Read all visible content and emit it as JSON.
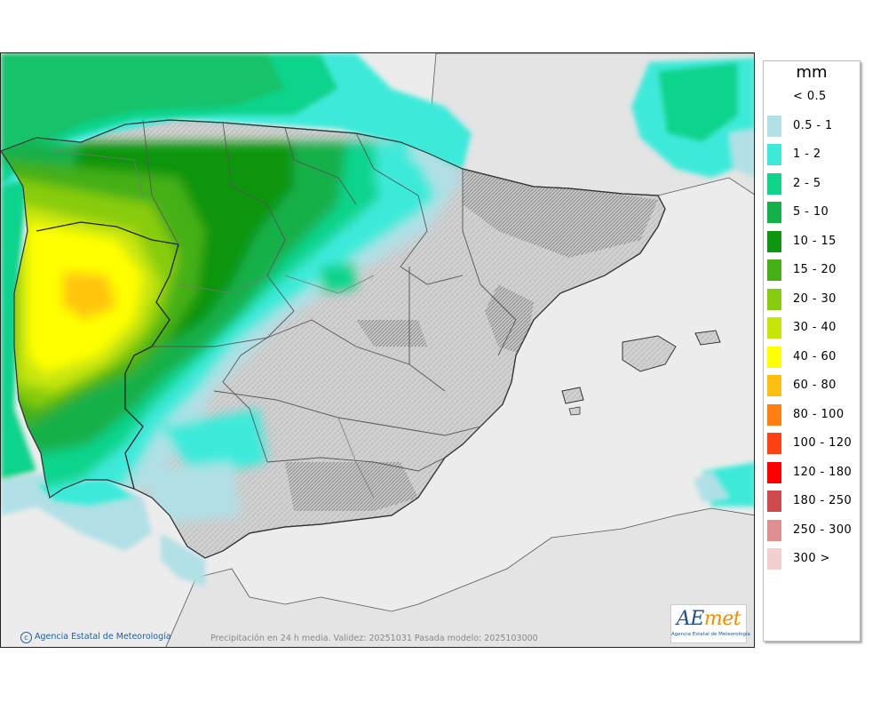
{
  "map": {
    "caption": "Precipitación en 24 h media. Validez: 20251031 Pasada modelo: 2025103000",
    "copyright": "Agencia Estatal de Meteorología",
    "logo": {
      "word_left": "AE",
      "word_right": "met",
      "subtitle": "Agencia Estatal de Meteorología"
    }
  },
  "legend": {
    "unit": "mm",
    "items": [
      {
        "label": "< 0.5",
        "color": "#ffffff"
      },
      {
        "label": "0.5 - 1",
        "color": "#b0e0e6"
      },
      {
        "label": "1 - 2",
        "color": "#3deada"
      },
      {
        "label": "2 - 5",
        "color": "#10d48c"
      },
      {
        "label": "5 - 10",
        "color": "#14b04a"
      },
      {
        "label": "10 - 15",
        "color": "#0f9510"
      },
      {
        "label": "15 - 20",
        "color": "#45b015"
      },
      {
        "label": "20 - 30",
        "color": "#88cc10"
      },
      {
        "label": "30 - 40",
        "color": "#c8e60a"
      },
      {
        "label": "40 - 60",
        "color": "#ffff00"
      },
      {
        "label": "60 - 80",
        "color": "#ffbf10"
      },
      {
        "label": "80 - 100",
        "color": "#ff8010"
      },
      {
        "label": "100 - 120",
        "color": "#ff4010"
      },
      {
        "label": "120 - 180",
        "color": "#ff0000"
      },
      {
        "label": "180 - 250",
        "color": "#cf4a4f"
      },
      {
        "label": "250 - 300",
        "color": "#df8f8f"
      },
      {
        "label": "300 >",
        "color": "#f4cfcf"
      }
    ]
  },
  "colors": {
    "sea": "#ececec",
    "land": "#d4d4d4",
    "border": "#222222"
  }
}
